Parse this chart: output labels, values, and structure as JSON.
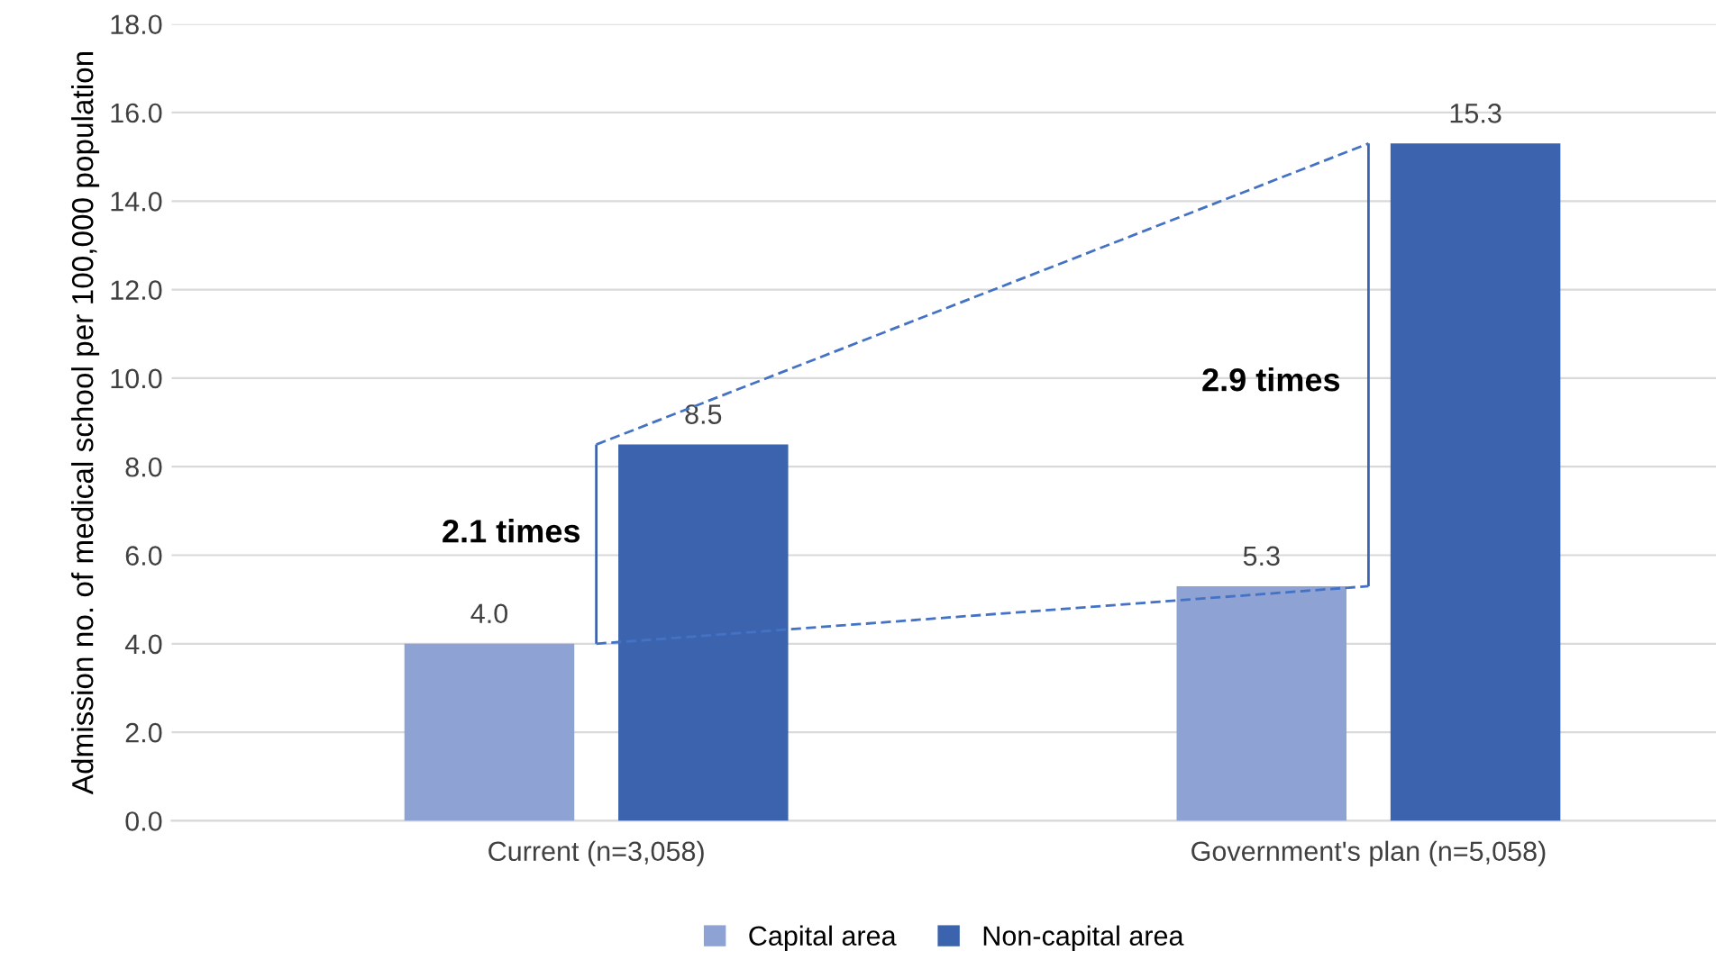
{
  "chart_data": {
    "type": "bar",
    "ylabel": "Admission no. of medical school per 100,000 population",
    "categories": [
      "Current (n=3,058)",
      "Government's plan (n=5,058)"
    ],
    "series": [
      {
        "name": "Capital area",
        "color": "#8fa2d4",
        "values": [
          4.0,
          5.3
        ],
        "value_labels": [
          "4.0",
          "5.3"
        ]
      },
      {
        "name": "Non-capital area",
        "color": "#3c64ae",
        "values": [
          8.5,
          15.3
        ],
        "value_labels": [
          "8.5",
          "15.3"
        ]
      },
      {
        "type": "line",
        "color": "#4472c4",
        "values": [
          4.0,
          5.3
        ],
        "line_style": "dashed"
      },
      {
        "type": "line",
        "color": "#4472c4",
        "values": [
          8.5,
          15.3
        ],
        "line_style": "dashed"
      }
    ],
    "ylim": [
      0,
      18
    ],
    "yticks": [
      {
        "value": 0,
        "label": "0.0"
      },
      {
        "value": 2,
        "label": "2.0"
      },
      {
        "value": 4,
        "label": "4.0"
      },
      {
        "value": 6,
        "label": "6.0"
      },
      {
        "value": 8,
        "label": "8.0"
      },
      {
        "value": 10,
        "label": "10.0"
      },
      {
        "value": 12,
        "label": "12.0"
      },
      {
        "value": 14,
        "label": "14.0"
      },
      {
        "value": 16,
        "label": "16.0"
      },
      {
        "value": 18,
        "label": "18.0"
      }
    ],
    "grid": "y",
    "legend": "bottom",
    "annotations": [
      "2.1 times",
      "2.9 times"
    ]
  }
}
